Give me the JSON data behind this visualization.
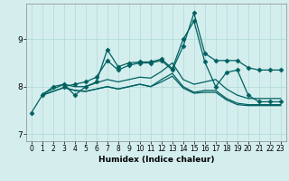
{
  "xlabel": "Humidex (Indice chaleur)",
  "background_color": "#d4eeee",
  "grid_color": "#b0d8d8",
  "line_color": "#006060",
  "xlim": [
    -0.5,
    23.5
  ],
  "ylim": [
    6.85,
    9.75
  ],
  "yticks": [
    7,
    8,
    9
  ],
  "xticks": [
    0,
    1,
    2,
    3,
    4,
    5,
    6,
    7,
    8,
    9,
    10,
    11,
    12,
    13,
    14,
    15,
    16,
    17,
    18,
    19,
    20,
    21,
    22,
    23
  ],
  "lines": [
    {
      "x": [
        0,
        1,
        2,
        3,
        4,
        5,
        6,
        7,
        8,
        9,
        10,
        11,
        12,
        13,
        14,
        15,
        16,
        17,
        18,
        19,
        20,
        21,
        22,
        23
      ],
      "y": [
        7.45,
        7.82,
        8.0,
        8.05,
        7.82,
        8.0,
        8.1,
        8.78,
        8.42,
        8.5,
        8.52,
        8.52,
        8.58,
        8.38,
        9.0,
        9.38,
        8.52,
        8.0,
        8.3,
        8.35,
        7.82,
        7.68,
        7.68,
        7.68
      ],
      "marker": "D",
      "markersize": 2.5,
      "linewidth": 0.9
    },
    {
      "x": [
        3,
        4,
        5,
        6,
        7,
        8,
        9,
        10,
        11,
        12,
        13,
        14,
        15,
        16,
        17,
        18,
        19,
        20,
        21,
        22,
        23
      ],
      "y": [
        8.0,
        8.05,
        8.1,
        8.2,
        8.55,
        8.35,
        8.45,
        8.5,
        8.5,
        8.55,
        8.35,
        8.85,
        9.55,
        8.7,
        8.55,
        8.55,
        8.55,
        8.4,
        8.35,
        8.35,
        8.35
      ],
      "marker": "D",
      "markersize": 2.5,
      "linewidth": 0.9
    },
    {
      "x": [
        1,
        2,
        3,
        4,
        5,
        6,
        7,
        8,
        9,
        10,
        11,
        12,
        13,
        14,
        15,
        16,
        17,
        18,
        19,
        20,
        21,
        22,
        23
      ],
      "y": [
        7.85,
        7.95,
        8.05,
        8.0,
        8.0,
        8.08,
        8.15,
        8.1,
        8.15,
        8.2,
        8.18,
        8.32,
        8.5,
        8.15,
        8.05,
        8.1,
        8.15,
        7.95,
        7.82,
        7.75,
        7.75,
        7.75,
        7.75
      ],
      "marker": null,
      "markersize": 0,
      "linewidth": 0.9
    },
    {
      "x": [
        1,
        2,
        3,
        4,
        5,
        6,
        7,
        8,
        9,
        10,
        11,
        12,
        13,
        14,
        15,
        16,
        17,
        18,
        19,
        20,
        21,
        22,
        23
      ],
      "y": [
        7.82,
        7.9,
        7.98,
        7.92,
        7.9,
        7.95,
        8.0,
        7.95,
        8.0,
        8.05,
        8.0,
        8.15,
        8.28,
        8.0,
        7.88,
        7.92,
        7.92,
        7.75,
        7.65,
        7.62,
        7.62,
        7.62,
        7.62
      ],
      "marker": null,
      "markersize": 0,
      "linewidth": 0.9
    },
    {
      "x": [
        1,
        2,
        3,
        4,
        5,
        6,
        7,
        8,
        9,
        10,
        11,
        12,
        13,
        14,
        15,
        16,
        17,
        18,
        19,
        20,
        21,
        22,
        23
      ],
      "y": [
        7.82,
        7.9,
        7.98,
        7.92,
        7.9,
        7.95,
        8.0,
        7.95,
        8.0,
        8.05,
        8.0,
        8.1,
        8.22,
        7.97,
        7.86,
        7.88,
        7.88,
        7.72,
        7.62,
        7.6,
        7.6,
        7.6,
        7.6
      ],
      "marker": null,
      "markersize": 0,
      "linewidth": 0.9
    }
  ]
}
